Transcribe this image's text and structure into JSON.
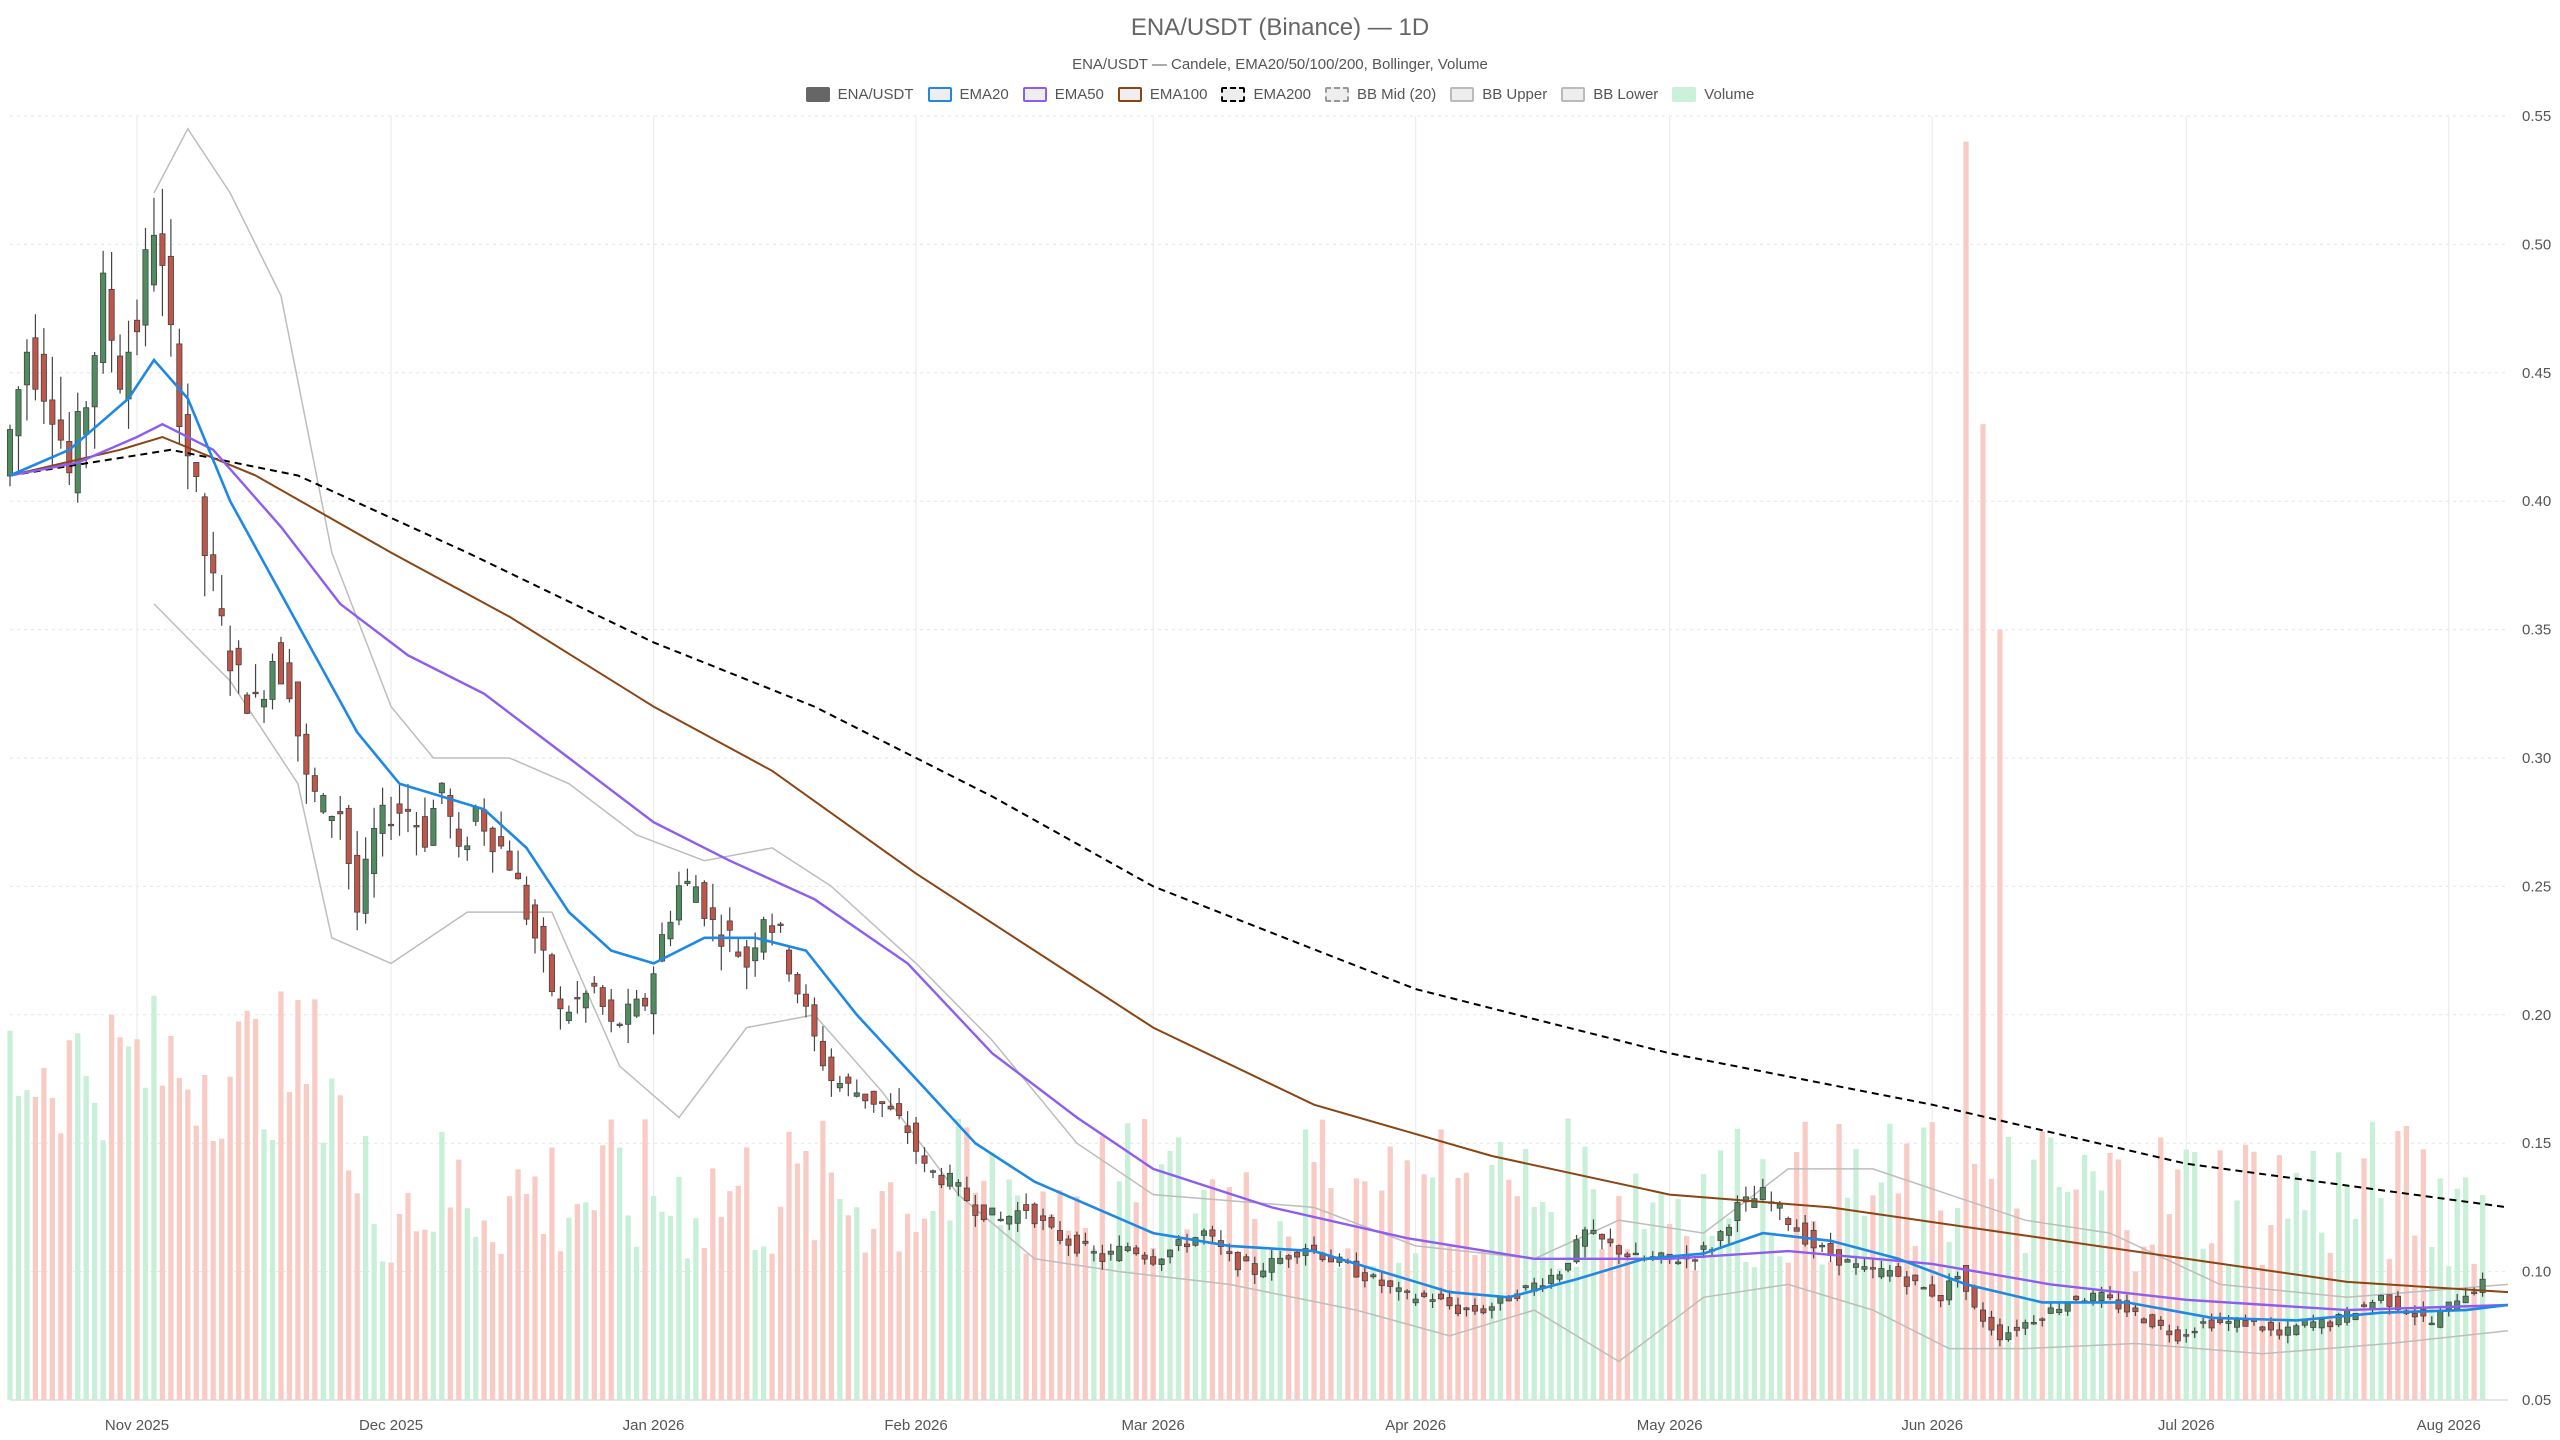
{
  "chart_data": {
    "type": "candlestick",
    "title": "ENA/USDT (Binance) — 1D",
    "subtitle": "ENA/USDT — Candele, EMA20/50/100/200, Bollinger, Volume",
    "legend": [
      {
        "name": "ENA/USDT",
        "color": "#666666",
        "style": "solid-fill"
      },
      {
        "name": "EMA20",
        "color": "#1e88e5",
        "style": "line"
      },
      {
        "name": "EMA50",
        "color": "#8e5cf0",
        "style": "line"
      },
      {
        "name": "EMA100",
        "color": "#8b4513",
        "style": "line"
      },
      {
        "name": "EMA200",
        "color": "#000000",
        "style": "dashed"
      },
      {
        "name": "BB Mid (20)",
        "color": "#999999",
        "style": "dashed"
      },
      {
        "name": "BB Upper",
        "color": "#bbbbbb",
        "style": "line"
      },
      {
        "name": "BB Lower",
        "color": "#bbbbbb",
        "style": "line"
      },
      {
        "name": "Volume",
        "color": "#a8e6c3",
        "style": "solid-fill"
      }
    ],
    "colors": {
      "up": "#4f8c5f",
      "down": "#c0564a",
      "vol_up": "#c8efd8",
      "vol_down": "#f9cbc5"
    },
    "x_range": [
      "2025-10-17",
      "2026-08-08"
    ],
    "x_ticks": [
      {
        "date": "2025-11-01",
        "label": "Nov 2025"
      },
      {
        "date": "2025-12-01",
        "label": "Dec 2025"
      },
      {
        "date": "2026-01-01",
        "label": "Jan 2026"
      },
      {
        "date": "2026-02-01",
        "label": "Feb 2026"
      },
      {
        "date": "2026-03-01",
        "label": "Mar 2026"
      },
      {
        "date": "2026-04-01",
        "label": "Apr 2026"
      },
      {
        "date": "2026-05-01",
        "label": "May 2026"
      },
      {
        "date": "2026-06-01",
        "label": "Jun 2026"
      },
      {
        "date": "2026-07-01",
        "label": "Jul 2026"
      },
      {
        "date": "2026-08-01",
        "label": "Aug 2026"
      }
    ],
    "y_axis": {
      "position": "right",
      "ylim": [
        0.05,
        0.55
      ],
      "ticks": [
        "0.05",
        "0.10",
        "0.15",
        "0.20",
        "0.25",
        "0.30",
        "0.35",
        "0.40",
        "0.45",
        "0.50",
        "0.55"
      ]
    },
    "grid": true,
    "close_series": [
      [
        "2025-10-17",
        0.41
      ],
      [
        "2025-10-20",
        0.46
      ],
      [
        "2025-10-23",
        0.44
      ],
      [
        "2025-10-25",
        0.41
      ],
      [
        "2025-10-27",
        0.44
      ],
      [
        "2025-10-29",
        0.48
      ],
      [
        "2025-10-31",
        0.45
      ],
      [
        "2025-11-02",
        0.47
      ],
      [
        "2025-11-04",
        0.51
      ],
      [
        "2025-11-06",
        0.46
      ],
      [
        "2025-11-08",
        0.42
      ],
      [
        "2025-11-10",
        0.38
      ],
      [
        "2025-11-12",
        0.35
      ],
      [
        "2025-11-14",
        0.33
      ],
      [
        "2025-11-16",
        0.32
      ],
      [
        "2025-11-18",
        0.34
      ],
      [
        "2025-11-20",
        0.33
      ],
      [
        "2025-11-22",
        0.29
      ],
      [
        "2025-11-24",
        0.28
      ],
      [
        "2025-11-26",
        0.28
      ],
      [
        "2025-11-28",
        0.24
      ],
      [
        "2025-11-30",
        0.27
      ],
      [
        "2025-12-02",
        0.28
      ],
      [
        "2025-12-04",
        0.28
      ],
      [
        "2025-12-06",
        0.27
      ],
      [
        "2025-12-08",
        0.29
      ],
      [
        "2025-12-10",
        0.26
      ],
      [
        "2025-12-12",
        0.28
      ],
      [
        "2025-12-14",
        0.27
      ],
      [
        "2025-12-16",
        0.26
      ],
      [
        "2025-12-18",
        0.24
      ],
      [
        "2025-12-20",
        0.22
      ],
      [
        "2025-12-22",
        0.2
      ],
      [
        "2025-12-24",
        0.205
      ],
      [
        "2025-12-26",
        0.21
      ],
      [
        "2025-12-28",
        0.195
      ],
      [
        "2025-12-30",
        0.2
      ],
      [
        "2026-01-01",
        0.205
      ],
      [
        "2026-01-03",
        0.23
      ],
      [
        "2026-01-05",
        0.25
      ],
      [
        "2026-01-07",
        0.25
      ],
      [
        "2026-01-09",
        0.235
      ],
      [
        "2026-01-11",
        0.23
      ],
      [
        "2026-01-13",
        0.22
      ],
      [
        "2026-01-15",
        0.24
      ],
      [
        "2026-01-17",
        0.23
      ],
      [
        "2026-01-19",
        0.21
      ],
      [
        "2026-01-21",
        0.19
      ],
      [
        "2026-01-23",
        0.175
      ],
      [
        "2026-01-26",
        0.17
      ],
      [
        "2026-01-29",
        0.165
      ],
      [
        "2026-02-01",
        0.155
      ],
      [
        "2026-02-03",
        0.14
      ],
      [
        "2026-02-06",
        0.135
      ],
      [
        "2026-02-09",
        0.125
      ],
      [
        "2026-02-12",
        0.12
      ],
      [
        "2026-02-15",
        0.125
      ],
      [
        "2026-02-18",
        0.115
      ],
      [
        "2026-02-21",
        0.11
      ],
      [
        "2026-02-24",
        0.105
      ],
      [
        "2026-02-27",
        0.11
      ],
      [
        "2026-03-02",
        0.105
      ],
      [
        "2026-03-05",
        0.11
      ],
      [
        "2026-03-08",
        0.115
      ],
      [
        "2026-03-11",
        0.105
      ],
      [
        "2026-03-14",
        0.1
      ],
      [
        "2026-03-17",
        0.105
      ],
      [
        "2026-03-20",
        0.11
      ],
      [
        "2026-03-23",
        0.105
      ],
      [
        "2026-03-26",
        0.1
      ],
      [
        "2026-03-29",
        0.095
      ],
      [
        "2026-04-01",
        0.09
      ],
      [
        "2026-04-04",
        0.09
      ],
      [
        "2026-04-07",
        0.085
      ],
      [
        "2026-04-10",
        0.085
      ],
      [
        "2026-04-13",
        0.09
      ],
      [
        "2026-04-16",
        0.095
      ],
      [
        "2026-04-19",
        0.1
      ],
      [
        "2026-04-22",
        0.115
      ],
      [
        "2026-04-25",
        0.11
      ],
      [
        "2026-04-28",
        0.105
      ],
      [
        "2026-05-01",
        0.105
      ],
      [
        "2026-05-04",
        0.105
      ],
      [
        "2026-05-07",
        0.11
      ],
      [
        "2026-05-10",
        0.125
      ],
      [
        "2026-05-13",
        0.13
      ],
      [
        "2026-05-16",
        0.12
      ],
      [
        "2026-05-19",
        0.11
      ],
      [
        "2026-05-22",
        0.105
      ],
      [
        "2026-05-25",
        0.1
      ],
      [
        "2026-05-28",
        0.1
      ],
      [
        "2026-05-31",
        0.095
      ],
      [
        "2026-06-03",
        0.09
      ],
      [
        "2026-06-05",
        0.1
      ],
      [
        "2026-06-07",
        0.085
      ],
      [
        "2026-06-10",
        0.075
      ],
      [
        "2026-06-13",
        0.08
      ],
      [
        "2026-06-16",
        0.085
      ],
      [
        "2026-06-19",
        0.09
      ],
      [
        "2026-06-22",
        0.09
      ],
      [
        "2026-06-25",
        0.085
      ],
      [
        "2026-06-28",
        0.08
      ],
      [
        "2026-07-01",
        0.075
      ],
      [
        "2026-07-04",
        0.08
      ],
      [
        "2026-07-07",
        0.08
      ],
      [
        "2026-07-10",
        0.08
      ],
      [
        "2026-07-13",
        0.075
      ],
      [
        "2026-07-16",
        0.08
      ],
      [
        "2026-07-19",
        0.08
      ],
      [
        "2026-07-22",
        0.085
      ],
      [
        "2026-07-25",
        0.09
      ],
      [
        "2026-07-28",
        0.085
      ],
      [
        "2026-07-31",
        0.08
      ],
      [
        "2026-08-03",
        0.09
      ],
      [
        "2026-08-06",
        0.095
      ]
    ],
    "ema20": [
      [
        "2025-10-17",
        0.41
      ],
      [
        "2025-10-24",
        0.42
      ],
      [
        "2025-10-31",
        0.44
      ],
      [
        "2025-11-03",
        0.455
      ],
      [
        "2025-11-07",
        0.44
      ],
      [
        "2025-11-12",
        0.4
      ],
      [
        "2025-11-17",
        0.37
      ],
      [
        "2025-11-22",
        0.34
      ],
      [
        "2025-11-27",
        0.31
      ],
      [
        "2025-12-02",
        0.29
      ],
      [
        "2025-12-07",
        0.285
      ],
      [
        "2025-12-12",
        0.28
      ],
      [
        "2025-12-17",
        0.265
      ],
      [
        "2025-12-22",
        0.24
      ],
      [
        "2025-12-27",
        0.225
      ],
      [
        "2026-01-01",
        0.22
      ],
      [
        "2026-01-07",
        0.23
      ],
      [
        "2026-01-13",
        0.23
      ],
      [
        "2026-01-19",
        0.225
      ],
      [
        "2026-01-25",
        0.2
      ],
      [
        "2026-02-01",
        0.175
      ],
      [
        "2026-02-08",
        0.15
      ],
      [
        "2026-02-15",
        0.135
      ],
      [
        "2026-02-22",
        0.125
      ],
      [
        "2026-03-01",
        0.115
      ],
      [
        "2026-03-10",
        0.11
      ],
      [
        "2026-03-20",
        0.108
      ],
      [
        "2026-03-28",
        0.1
      ],
      [
        "2026-04-05",
        0.092
      ],
      [
        "2026-04-12",
        0.09
      ],
      [
        "2026-04-20",
        0.097
      ],
      [
        "2026-04-28",
        0.105
      ],
      [
        "2026-05-05",
        0.107
      ],
      [
        "2026-05-12",
        0.115
      ],
      [
        "2026-05-20",
        0.112
      ],
      [
        "2026-05-28",
        0.105
      ],
      [
        "2026-06-05",
        0.095
      ],
      [
        "2026-06-14",
        0.088
      ],
      [
        "2026-06-24",
        0.088
      ],
      [
        "2026-07-04",
        0.082
      ],
      [
        "2026-07-14",
        0.081
      ],
      [
        "2026-07-24",
        0.084
      ],
      [
        "2026-08-03",
        0.085
      ],
      [
        "2026-08-08",
        0.087
      ]
    ],
    "ema50": [
      [
        "2025-10-17",
        0.41
      ],
      [
        "2025-10-25",
        0.415
      ],
      [
        "2025-11-01",
        0.425
      ],
      [
        "2025-11-04",
        0.43
      ],
      [
        "2025-11-10",
        0.42
      ],
      [
        "2025-11-18",
        0.39
      ],
      [
        "2025-11-25",
        0.36
      ],
      [
        "2025-12-03",
        0.34
      ],
      [
        "2025-12-12",
        0.325
      ],
      [
        "2025-12-22",
        0.3
      ],
      [
        "2026-01-01",
        0.275
      ],
      [
        "2026-01-10",
        0.26
      ],
      [
        "2026-01-20",
        0.245
      ],
      [
        "2026-01-31",
        0.22
      ],
      [
        "2026-02-10",
        0.185
      ],
      [
        "2026-02-20",
        0.16
      ],
      [
        "2026-03-01",
        0.14
      ],
      [
        "2026-03-15",
        0.125
      ],
      [
        "2026-03-31",
        0.113
      ],
      [
        "2026-04-15",
        0.105
      ],
      [
        "2026-05-01",
        0.105
      ],
      [
        "2026-05-15",
        0.108
      ],
      [
        "2026-06-01",
        0.103
      ],
      [
        "2026-06-15",
        0.095
      ],
      [
        "2026-07-01",
        0.089
      ],
      [
        "2026-07-20",
        0.085
      ],
      [
        "2026-08-08",
        0.087
      ]
    ],
    "ema100": [
      [
        "2025-10-17",
        0.41
      ],
      [
        "2025-10-30",
        0.42
      ],
      [
        "2025-11-04",
        0.425
      ],
      [
        "2025-11-15",
        0.41
      ],
      [
        "2025-12-01",
        0.38
      ],
      [
        "2025-12-15",
        0.355
      ],
      [
        "2026-01-01",
        0.32
      ],
      [
        "2026-01-15",
        0.295
      ],
      [
        "2026-02-01",
        0.255
      ],
      [
        "2026-02-15",
        0.225
      ],
      [
        "2026-03-01",
        0.195
      ],
      [
        "2026-03-20",
        0.165
      ],
      [
        "2026-04-10",
        0.145
      ],
      [
        "2026-05-01",
        0.13
      ],
      [
        "2026-05-20",
        0.125
      ],
      [
        "2026-06-10",
        0.115
      ],
      [
        "2026-07-01",
        0.105
      ],
      [
        "2026-07-20",
        0.096
      ],
      [
        "2026-08-08",
        0.092
      ]
    ],
    "ema200": [
      [
        "2025-10-17",
        0.41
      ],
      [
        "2025-11-05",
        0.42
      ],
      [
        "2025-11-20",
        0.41
      ],
      [
        "2025-12-10",
        0.38
      ],
      [
        "2026-01-01",
        0.345
      ],
      [
        "2026-01-20",
        0.32
      ],
      [
        "2026-02-10",
        0.285
      ],
      [
        "2026-03-01",
        0.25
      ],
      [
        "2026-04-01",
        0.21
      ],
      [
        "2026-05-01",
        0.185
      ],
      [
        "2026-06-01",
        0.165
      ],
      [
        "2026-07-01",
        0.142
      ],
      [
        "2026-08-08",
        0.125
      ]
    ],
    "bb_upper": [
      [
        "2025-11-03",
        0.52
      ],
      [
        "2025-11-07",
        0.545
      ],
      [
        "2025-11-12",
        0.52
      ],
      [
        "2025-11-18",
        0.48
      ],
      [
        "2025-11-24",
        0.38
      ],
      [
        "2025-12-01",
        0.32
      ],
      [
        "2025-12-06",
        0.3
      ],
      [
        "2025-12-15",
        0.3
      ],
      [
        "2025-12-22",
        0.29
      ],
      [
        "2025-12-30",
        0.27
      ],
      [
        "2026-01-07",
        0.26
      ],
      [
        "2026-01-15",
        0.265
      ],
      [
        "2026-01-22",
        0.25
      ],
      [
        "2026-02-01",
        0.22
      ],
      [
        "2026-02-10",
        0.19
      ],
      [
        "2026-02-20",
        0.15
      ],
      [
        "2026-03-01",
        0.13
      ],
      [
        "2026-03-20",
        0.125
      ],
      [
        "2026-04-01",
        0.11
      ],
      [
        "2026-04-15",
        0.105
      ],
      [
        "2026-04-25",
        0.12
      ],
      [
        "2026-05-05",
        0.115
      ],
      [
        "2026-05-15",
        0.14
      ],
      [
        "2026-05-25",
        0.14
      ],
      [
        "2026-06-03",
        0.13
      ],
      [
        "2026-06-12",
        0.12
      ],
      [
        "2026-06-22",
        0.115
      ],
      [
        "2026-07-05",
        0.095
      ],
      [
        "2026-07-20",
        0.09
      ],
      [
        "2026-08-08",
        0.095
      ]
    ],
    "bb_lower": [
      [
        "2025-11-03",
        0.36
      ],
      [
        "2025-11-12",
        0.33
      ],
      [
        "2025-11-20",
        0.29
      ],
      [
        "2025-11-24",
        0.23
      ],
      [
        "2025-12-01",
        0.22
      ],
      [
        "2025-12-10",
        0.24
      ],
      [
        "2025-12-20",
        0.24
      ],
      [
        "2025-12-28",
        0.18
      ],
      [
        "2026-01-04",
        0.16
      ],
      [
        "2026-01-12",
        0.195
      ],
      [
        "2026-01-20",
        0.2
      ],
      [
        "2026-01-28",
        0.17
      ],
      [
        "2026-02-06",
        0.13
      ],
      [
        "2026-02-15",
        0.105
      ],
      [
        "2026-02-25",
        0.1
      ],
      [
        "2026-03-10",
        0.095
      ],
      [
        "2026-03-25",
        0.085
      ],
      [
        "2026-04-05",
        0.075
      ],
      [
        "2026-04-15",
        0.085
      ],
      [
        "2026-04-25",
        0.065
      ],
      [
        "2026-05-05",
        0.09
      ],
      [
        "2026-05-15",
        0.095
      ],
      [
        "2026-05-25",
        0.085
      ],
      [
        "2026-06-03",
        0.07
      ],
      [
        "2026-06-12",
        0.07
      ],
      [
        "2026-06-25",
        0.072
      ],
      [
        "2026-07-10",
        0.068
      ],
      [
        "2026-07-25",
        0.072
      ],
      [
        "2026-08-08",
        0.077
      ]
    ],
    "volume_peaks": [
      [
        "2026-06-05",
        0.54
      ],
      [
        "2026-06-07",
        0.43
      ],
      [
        "2026-06-09",
        0.35
      ]
    ]
  }
}
